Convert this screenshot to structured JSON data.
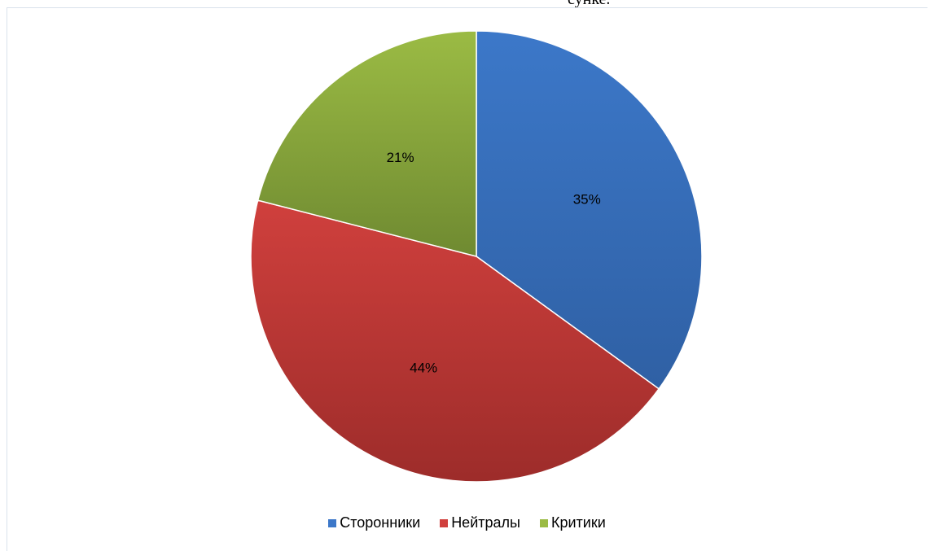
{
  "page_fragment_text": "сунке.",
  "chart_data": {
    "type": "pie",
    "title": "",
    "start_angle_deg": 0,
    "direction": "clockwise",
    "legend_position": "bottom",
    "slices": [
      {
        "label": "Сторонники",
        "value": 35,
        "display": "35%",
        "color": "#3c78c9",
        "color_dark": "#2f60a4"
      },
      {
        "label": "Нейтралы",
        "value": 44,
        "display": "44%",
        "color": "#d0403d",
        "color_dark": "#9d2c2a"
      },
      {
        "label": "Критики",
        "value": 21,
        "display": "21%",
        "color": "#9bbb44",
        "color_dark": "#6f8a31"
      }
    ]
  }
}
